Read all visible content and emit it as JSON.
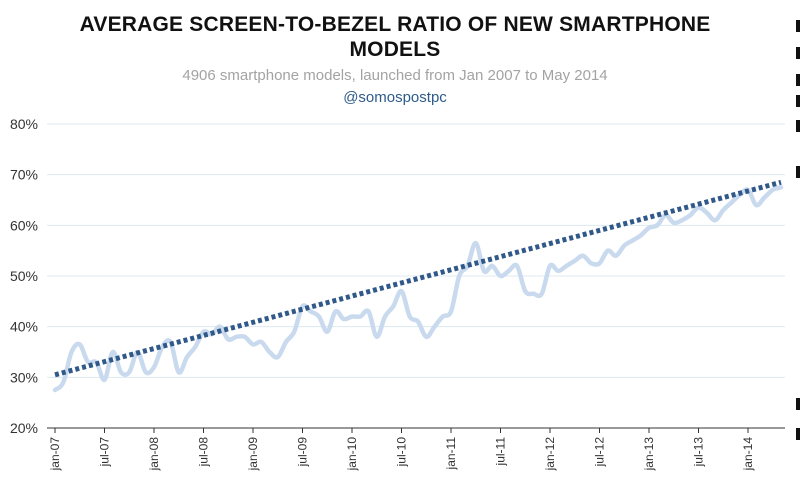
{
  "chart_data": {
    "type": "line",
    "title_lines": [
      "AVERAGE SCREEN-TO-BEZEL RATIO OF NEW SMARTPHONE",
      "MODELS"
    ],
    "subtitle": "4906 smartphone models, launched from Jan 2007 to May 2014",
    "source": "@somospostpc",
    "xlabel": "",
    "ylabel": "",
    "ylim": [
      20,
      80
    ],
    "yticks": [
      "20%",
      "30%",
      "40%",
      "50%",
      "60%",
      "70%",
      "80%"
    ],
    "xticks": [
      "jan-07",
      "jul-07",
      "jan-08",
      "jul-08",
      "jan-09",
      "jul-09",
      "jan-10",
      "jul-10",
      "jan-11",
      "jul-11",
      "jan-12",
      "jul-12",
      "jan-13",
      "jul-13",
      "jan-14"
    ],
    "grid": true,
    "legend": "none",
    "series": [
      {
        "values": [
          27.5,
          29,
          35,
          36.5,
          33,
          33,
          29.5,
          35,
          31,
          31,
          35,
          31,
          32,
          36,
          37,
          31,
          34,
          36,
          39,
          38.5,
          40,
          37.5,
          38,
          38,
          36.5,
          37,
          35,
          34,
          37,
          39,
          44,
          43,
          42,
          39,
          43,
          41.5,
          42,
          42,
          43,
          38,
          42,
          44,
          47,
          42,
          41,
          38,
          40,
          42,
          43,
          50,
          52,
          56.5,
          51,
          52,
          50,
          51,
          52,
          47,
          46.5,
          46.5,
          52,
          51,
          52,
          53,
          54,
          52.5,
          52.5,
          55,
          54,
          56,
          57,
          58,
          59.5,
          60,
          62,
          60.5,
          61,
          62,
          63.5,
          62.5,
          61,
          63,
          64.5,
          66,
          67,
          64,
          65.5,
          67,
          67.5
        ],
        "color": "#c9daee"
      },
      {
        "values": [
          30.5,
          68.5
        ],
        "color": "#30598a"
      }
    ]
  }
}
